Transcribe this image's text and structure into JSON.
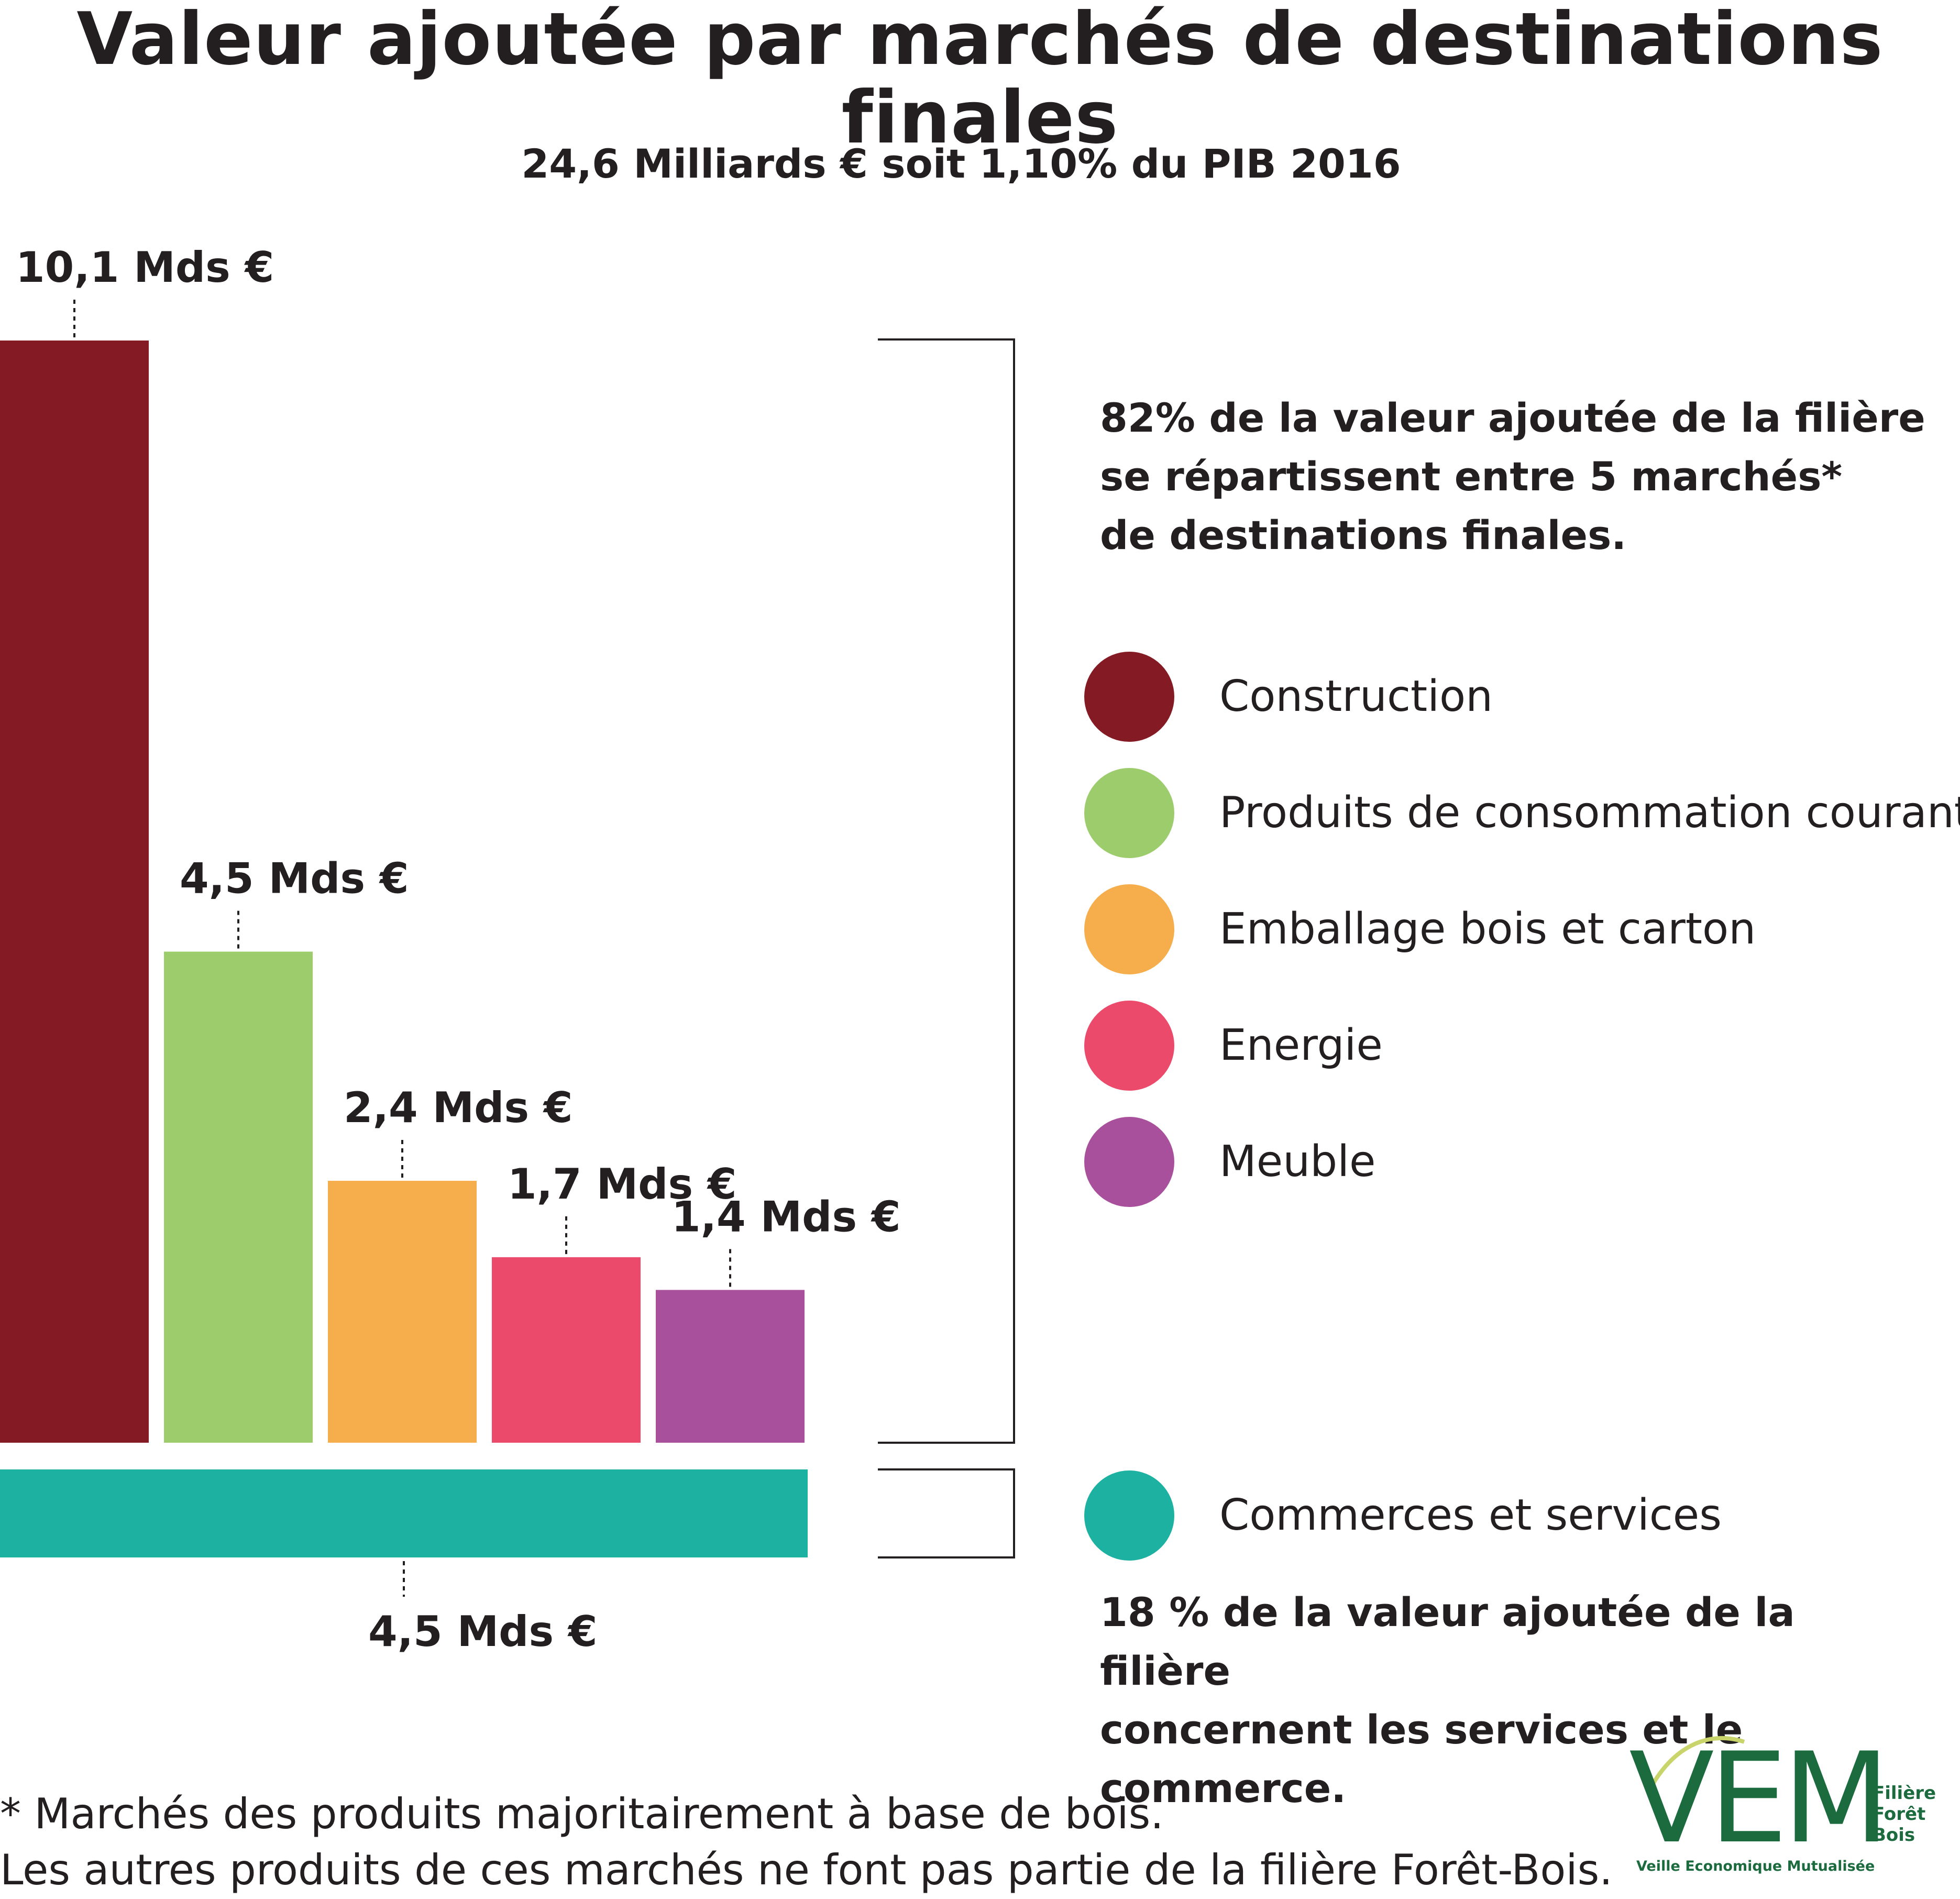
{
  "title": "Valeur ajoutée par marchés de destinations finales",
  "subtitle": "24,6 Milliards € soit 1,10% du PIB 2016",
  "group_main": {
    "note_lines": [
      "82% de la valeur ajoutée de la filière",
      "se répartissent entre 5 marchés*",
      "de destinations finales."
    ]
  },
  "group_services": {
    "note_lines": [
      "18 % de la valeur ajoutée de la filière",
      "concernent les services et le commerce."
    ]
  },
  "legend": [
    {
      "label": "Construction",
      "color": "#841b24"
    },
    {
      "label": "Produits de consommation courante",
      "color": "#9ccc6c"
    },
    {
      "label": "Emballage bois et carton",
      "color": "#f6ad4b"
    },
    {
      "label": "Energie",
      "color": "#eb4a6a"
    },
    {
      "label": "Meuble",
      "color": "#a9509d"
    },
    {
      "label": "Commerces et services",
      "color": "#1db1a2"
    }
  ],
  "chart_data": {
    "type": "bar",
    "unit": "Mds €",
    "categories": [
      "Construction",
      "Produits de consommation courante",
      "Emballage bois et carton",
      "Energie",
      "Meuble"
    ],
    "values": [
      10.1,
      4.5,
      2.4,
      1.7,
      1.4
    ],
    "value_labels": [
      "10,1 Mds €",
      "4,5 Mds €",
      "2,4 Mds €",
      "1,7 Mds €",
      "1,4 Mds €"
    ],
    "colors": [
      "#841b24",
      "#9ccc6c",
      "#f6ad4b",
      "#eb4a6a",
      "#a9509d"
    ],
    "services_bar": {
      "category": "Commerces et services",
      "value": 4.5,
      "value_label": "4,5 Mds €",
      "color": "#1db1a2"
    }
  },
  "footnote": {
    "line1": "* Marchés des produits majoritairement à base de bois.",
    "line2": "Les autres produits de ces marchés ne font pas partie de la filière Forêt-Bois."
  },
  "logo": {
    "letters": "VEM",
    "side_lines": [
      "Filière",
      "Forêt",
      "Bois"
    ],
    "tagline": "Veille Economique Mutualisée"
  }
}
